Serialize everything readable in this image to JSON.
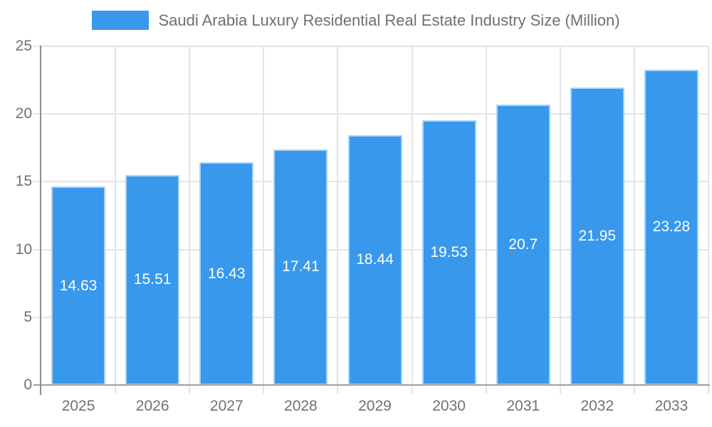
{
  "legend": {
    "label": "Saudi Arabia Luxury Residential Real Estate Industry Size (Million)",
    "swatch_color": "#3898ec"
  },
  "chart_data": {
    "type": "bar",
    "title": "Saudi Arabia Luxury Residential Real Estate Industry Size (Million)",
    "categories": [
      "2025",
      "2026",
      "2027",
      "2028",
      "2029",
      "2030",
      "2031",
      "2032",
      "2033"
    ],
    "values": [
      14.63,
      15.51,
      16.43,
      17.41,
      18.44,
      19.53,
      20.7,
      21.95,
      23.28
    ],
    "xlabel": "",
    "ylabel": "",
    "ylim": [
      0,
      25
    ],
    "yticks": [
      0,
      5,
      10,
      15,
      20,
      25
    ],
    "grid": true,
    "legend_position": "top",
    "bar_color": "#3898ec",
    "bar_border_color": "#a9d3f6",
    "value_label_color": "#ffffff",
    "grid_color": "#e4e4e4",
    "axis_color": "#8f8f8f",
    "tick_label_color": "#717171"
  }
}
